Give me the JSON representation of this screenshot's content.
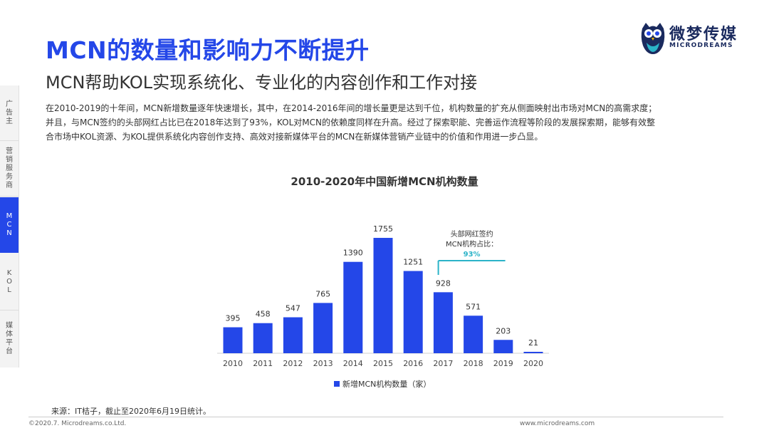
{
  "header": {
    "title": "MCN的数量和影响力不断提升",
    "subtitle": "MCN帮助KOL实现系统化、专业化的内容创作和工作对接"
  },
  "body_lines": [
    "在2010-2019的十年间，MCN新增数量逐年快速增长，其中，在2014-2016年间的增长量更是达到千位，机构数量的扩充从侧面映射出市场对MCN的高需求度；",
    "并且，与MCN签约的头部网红占比已在2018年达到了93%，KOL对MCN的依赖度同样在升高。经过了探索职能、完善运作流程等阶段的发展探索期，能够有效整",
    "合市场中KOL资源、为KOL提供系统化内容创作支持、高效对接新媒体平台的MCN在新媒体营销产业链中的价值和作用进一步凸显。"
  ],
  "logo": {
    "cn": "微梦传媒",
    "en": "MICRODREAMS"
  },
  "sidenav": [
    {
      "label": "广告主",
      "active": false
    },
    {
      "label": "营销服务商",
      "active": false
    },
    {
      "label": "MCN",
      "active": true
    },
    {
      "label": "KOL",
      "active": false
    },
    {
      "label": "媒体平台",
      "active": false
    }
  ],
  "chart_data": {
    "type": "bar",
    "title": "2010-2020年中国新增MCN机构数量",
    "categories": [
      "2010",
      "2011",
      "2012",
      "2013",
      "2014",
      "2015",
      "2016",
      "2017",
      "2018",
      "2019",
      "2020"
    ],
    "series": [
      {
        "name": "新增MCN机构数量（家）",
        "values": [
          395,
          458,
          547,
          765,
          1390,
          1755,
          1251,
          928,
          571,
          203,
          21
        ]
      }
    ],
    "ylim": [
      0,
      1900
    ],
    "grid": false,
    "legend": "bottom",
    "bar_color": "#2447e8",
    "annotation": {
      "category": "2018",
      "lines": [
        "头部网红签约",
        "MCN机构占比："
      ],
      "value": "93%",
      "color": "#2bb3c8"
    }
  },
  "source": "来源：IT桔子，截止至2020年6月19日统计。",
  "footer": {
    "copyright": "©2020.7. Microdreams.co.Ltd.",
    "website": "www.microdreams.com"
  },
  "colors": {
    "accent": "#2447e8",
    "annotation": "#2bb3c8"
  },
  "icons": {
    "logo": "owl-icon"
  }
}
